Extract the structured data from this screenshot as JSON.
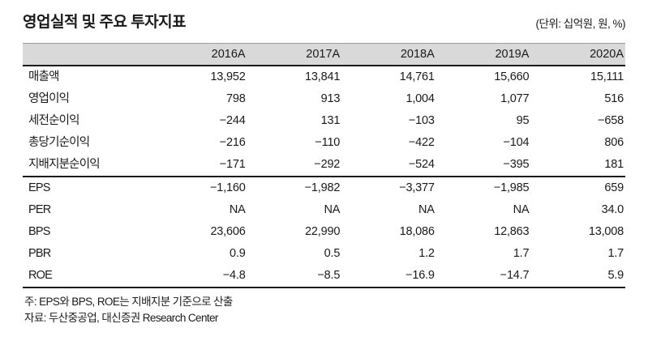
{
  "title": "영업실적 및 주요 투자지표",
  "unit_label": "(단위: 십억원, 원, %)",
  "colors": {
    "header_bg": "#d9d9d9",
    "rule_dark": "#1b1b1b",
    "rule_light": "#9a9a9a",
    "text": "#1a1a1a"
  },
  "table": {
    "columns": [
      "2016A",
      "2017A",
      "2018A",
      "2019A",
      "2020A"
    ],
    "sections": [
      {
        "rows": [
          {
            "label": "매출액",
            "values": [
              "13,952",
              "13,841",
              "14,761",
              "15,660",
              "15,111"
            ]
          },
          {
            "label": "영업이익",
            "values": [
              "798",
              "913",
              "1,004",
              "1,077",
              "516"
            ]
          },
          {
            "label": "세전순이익",
            "values": [
              "−244",
              "131",
              "−103",
              "95",
              "−658"
            ]
          },
          {
            "label": "총당기순이익",
            "values": [
              "−216",
              "−110",
              "−422",
              "−104",
              "806"
            ]
          },
          {
            "label": "지배지분순이익",
            "values": [
              "−171",
              "−292",
              "−524",
              "−395",
              "181"
            ]
          }
        ]
      },
      {
        "rows": [
          {
            "label": "EPS",
            "values": [
              "−1,160",
              "−1,982",
              "−3,377",
              "−1,985",
              "659"
            ]
          },
          {
            "label": "PER",
            "values": [
              "NA",
              "NA",
              "NA",
              "NA",
              "34.0"
            ]
          },
          {
            "label": "BPS",
            "values": [
              "23,606",
              "22,990",
              "18,086",
              "12,863",
              "13,008"
            ]
          },
          {
            "label": "PBR",
            "values": [
              "0.9",
              "0.5",
              "1.2",
              "1.7",
              "1.7"
            ]
          },
          {
            "label": "ROE",
            "values": [
              "−4.8",
              "−8.5",
              "−16.9",
              "−14.7",
              "5.9"
            ]
          }
        ]
      }
    ]
  },
  "footnotes": {
    "note": "주: EPS와 BPS, ROE는 지배지분 기준으로 산출",
    "source": "자료: 두산중공업, 대신증권 Research Center"
  }
}
